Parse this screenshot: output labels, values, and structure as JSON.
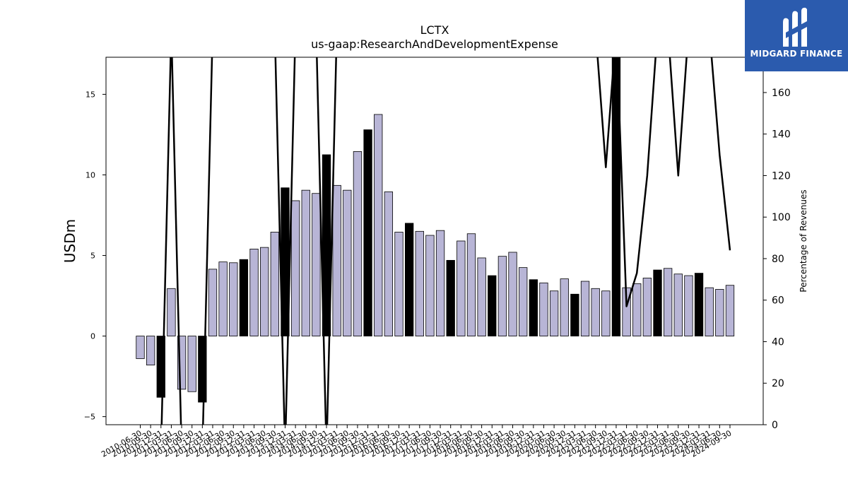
{
  "chart_data": {
    "type": "bar",
    "title": "LCTX",
    "subtitle": "us-gaap:ResearchAndDevelopmentExpense",
    "ylabel": "USDm",
    "ylabel_right": "Percentage of Revenues",
    "ylim": [
      -5.5,
      17.3
    ],
    "ylim_right": [
      0,
      177
    ],
    "yticks": [
      -5,
      0,
      5,
      10,
      15
    ],
    "yticks_right": [
      0,
      20,
      40,
      60,
      80,
      100,
      120,
      140,
      160
    ],
    "categories": [
      "2010-06-30",
      "2010-09-30",
      "2010-12-31",
      "2011-03-31",
      "2011-06-30",
      "2011-09-30",
      "2011-12-31",
      "2012-03-31",
      "2012-06-30",
      "2012-09-30",
      "2012-12-31",
      "2013-03-31",
      "2013-06-30",
      "2013-09-30",
      "2013-12-31",
      "2014-03-31",
      "2014-06-30",
      "2014-09-30",
      "2014-12-31",
      "2015-03-31",
      "2015-06-30",
      "2015-09-30",
      "2015-12-31",
      "2016-03-31",
      "2016-06-30",
      "2016-09-30",
      "2016-12-31",
      "2017-03-31",
      "2017-06-30",
      "2017-09-30",
      "2017-12-31",
      "2018-03-31",
      "2018-06-30",
      "2018-09-30",
      "2018-12-31",
      "2019-03-31",
      "2019-06-30",
      "2019-09-30",
      "2019-12-31",
      "2020-03-31",
      "2020-06-30",
      "2020-09-30",
      "2020-12-31",
      "2021-03-31",
      "2021-06-30",
      "2021-09-30",
      "2021-12-31",
      "2022-03-31",
      "2022-06-30",
      "2022-09-30",
      "2022-12-31",
      "2023-03-31",
      "2023-06-30",
      "2023-09-30",
      "2023-12-31",
      "2024-03-31",
      "2024-06-30",
      "2024-09-30"
    ],
    "values": [
      -1.4,
      -1.8,
      -3.8,
      2.95,
      -3.3,
      -3.45,
      -4.1,
      4.15,
      4.6,
      4.55,
      4.75,
      5.4,
      5.5,
      6.45,
      9.2,
      8.4,
      9.05,
      8.85,
      11.25,
      9.35,
      9.05,
      11.45,
      12.8,
      13.75,
      8.95,
      6.45,
      7.0,
      6.5,
      6.25,
      6.55,
      4.7,
      5.9,
      6.35,
      4.85,
      3.75,
      4.95,
      5.2,
      4.25,
      3.5,
      3.3,
      2.8,
      3.55,
      2.6,
      3.4,
      2.95,
      2.8,
      17.3,
      3.0,
      3.25,
      3.6,
      4.1,
      4.2,
      3.85,
      3.75,
      3.9,
      3.0,
      2.9,
      3.15
    ],
    "annual_flags": [
      false,
      false,
      true,
      false,
      false,
      false,
      true,
      false,
      false,
      false,
      true,
      false,
      false,
      false,
      true,
      false,
      false,
      false,
      true,
      false,
      false,
      false,
      true,
      false,
      false,
      false,
      true,
      false,
      false,
      false,
      true,
      false,
      false,
      false,
      true,
      false,
      false,
      false,
      true,
      false,
      false,
      false,
      true,
      false,
      false,
      false,
      true,
      false,
      false,
      false,
      true,
      false,
      false,
      false,
      true,
      false,
      false,
      false
    ],
    "line_series": {
      "axis": "right",
      "points": [
        [
          0,
          null
        ],
        [
          1,
          null
        ],
        [
          2,
          null
        ],
        [
          3,
          177
        ],
        [
          4,
          null
        ],
        [
          5,
          null
        ],
        [
          6,
          null
        ],
        [
          7,
          177
        ],
        [
          8,
          177
        ],
        [
          9,
          177
        ],
        [
          10,
          177
        ],
        [
          11,
          177
        ],
        [
          12,
          177
        ],
        [
          13,
          177
        ],
        [
          14,
          0
        ],
        [
          15,
          177
        ],
        [
          16,
          177
        ],
        [
          17,
          177
        ],
        [
          18,
          0
        ],
        [
          19,
          177
        ],
        [
          20,
          177
        ],
        [
          21,
          177
        ],
        [
          22,
          177
        ],
        [
          23,
          177
        ],
        [
          24,
          177
        ],
        [
          25,
          177
        ],
        [
          26,
          177
        ],
        [
          27,
          177
        ],
        [
          28,
          177
        ],
        [
          29,
          177
        ],
        [
          30,
          177
        ],
        [
          31,
          177
        ],
        [
          32,
          177
        ],
        [
          33,
          177
        ],
        [
          34,
          177
        ],
        [
          35,
          177
        ],
        [
          36,
          177
        ],
        [
          37,
          177
        ],
        [
          38,
          177
        ],
        [
          39,
          177
        ],
        [
          40,
          177
        ],
        [
          41,
          177
        ],
        [
          42,
          177
        ],
        [
          43,
          177
        ],
        [
          44,
          177
        ],
        [
          45,
          124
        ],
        [
          46,
          177
        ],
        [
          47,
          57
        ],
        [
          48,
          73
        ],
        [
          49,
          120
        ],
        [
          50,
          177
        ],
        [
          51,
          177
        ],
        [
          52,
          120
        ],
        [
          53,
          177
        ],
        [
          54,
          177
        ],
        [
          55,
          177
        ],
        [
          56,
          130
        ],
        [
          57,
          84
        ]
      ]
    },
    "colors": {
      "bar": "#b8b5d6",
      "annual_bar": "#000000",
      "line": "#000000"
    },
    "grid": false
  },
  "logo": {
    "text": "MIDGARD FINANCE",
    "color": "#2b5bae"
  }
}
